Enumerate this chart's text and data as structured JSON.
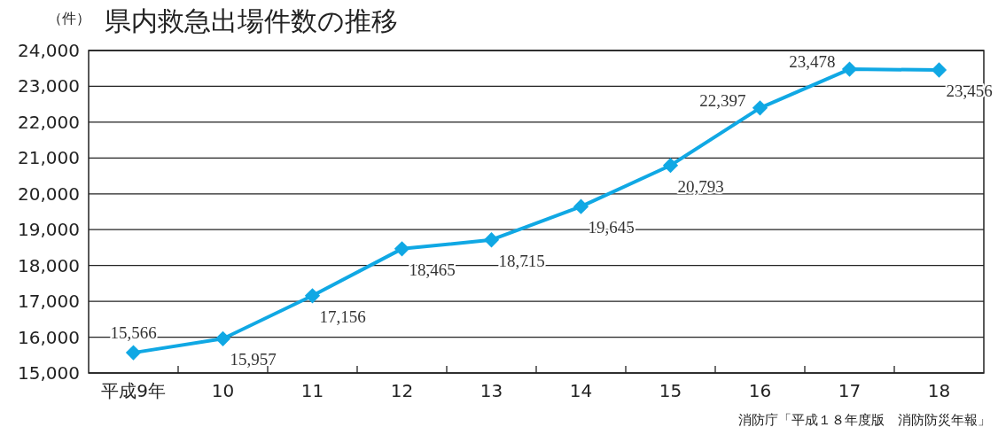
{
  "chart_data": {
    "type": "line",
    "title": "県内救急出場件数の推移",
    "ylabel": "（件）",
    "categories": [
      "平成9年",
      "10",
      "11",
      "12",
      "13",
      "14",
      "15",
      "16",
      "17",
      "18"
    ],
    "series": [
      {
        "color": "#10a8e4",
        "values": [
          15566,
          15957,
          17156,
          18465,
          18715,
          19645,
          20793,
          22397,
          23478,
          23456
        ],
        "value_labels": [
          "15,566",
          "15,957",
          "17,156",
          "18,465",
          "18,715",
          "19,645",
          "20,793",
          "22,397",
          "23,478",
          "23,456"
        ]
      }
    ],
    "ylim": [
      15000,
      24000
    ],
    "yticks": [
      {
        "value": 15000,
        "label": "15,000"
      },
      {
        "value": 16000,
        "label": "16,000"
      },
      {
        "value": 17000,
        "label": "17,000"
      },
      {
        "value": 18000,
        "label": "18,000"
      },
      {
        "value": 19000,
        "label": "19,000"
      },
      {
        "value": 20000,
        "label": "20,000"
      },
      {
        "value": 21000,
        "label": "21,000"
      },
      {
        "value": 22000,
        "label": "22,000"
      },
      {
        "value": 23000,
        "label": "23,000"
      },
      {
        "value": 24000,
        "label": "24,000"
      }
    ],
    "grid": "y",
    "marker": "diamond",
    "line_style": "solid",
    "annotations": [
      "消防庁「平成１８年度版　消防防災年報」"
    ]
  }
}
